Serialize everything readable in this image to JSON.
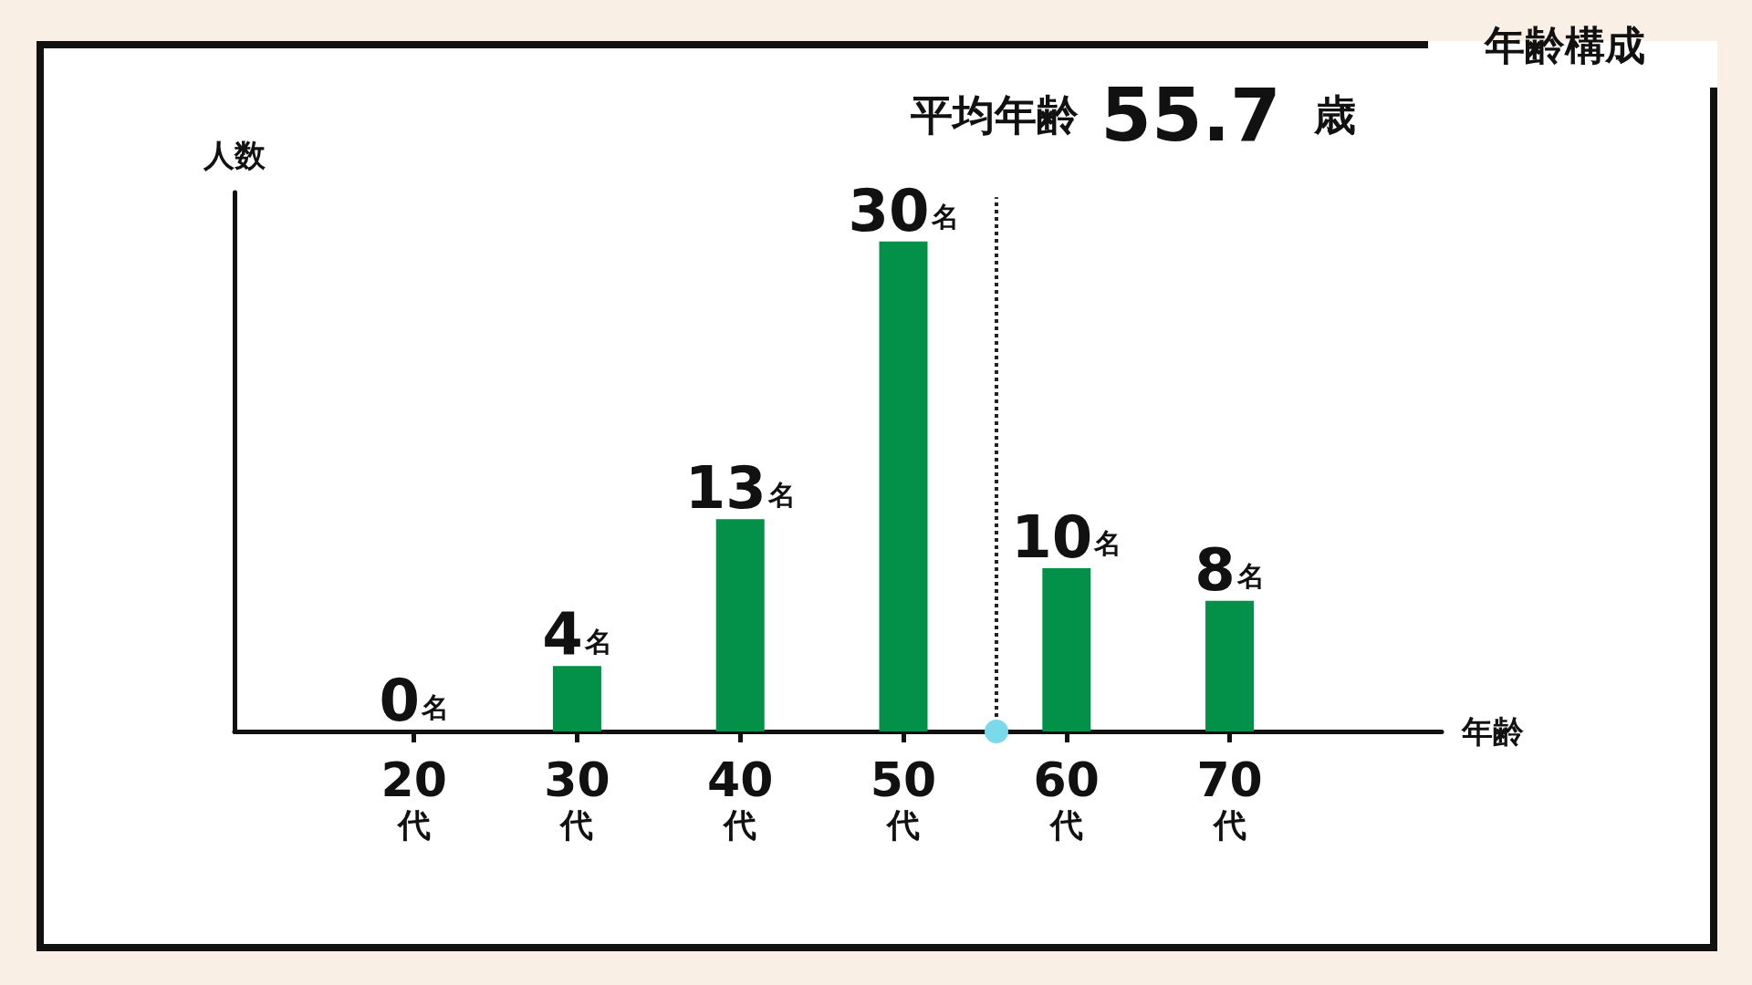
{
  "chart_data": {
    "type": "bar",
    "title": "年齢構成",
    "xlabel": "年齢",
    "ylabel": "人数",
    "x": [
      20,
      30,
      40,
      50,
      60,
      70
    ],
    "values": [
      0,
      4,
      13,
      30,
      10,
      8
    ],
    "value_labels": [
      "0名",
      "4名",
      "13名",
      "30名",
      "10名",
      "8名"
    ],
    "color": "#03914a",
    "xlim": [
      9,
      83
    ],
    "xticks": [
      {
        "value": 20,
        "label": "20\n代"
      },
      {
        "value": 30,
        "label": "30\n代"
      },
      {
        "value": 40,
        "label": "40\n代"
      },
      {
        "value": 50,
        "label": "50\n代"
      },
      {
        "value": 60,
        "label": "60\n代"
      },
      {
        "value": 70,
        "label": "70\n代"
      }
    ],
    "ylim": [
      0,
      33
    ],
    "tick_labels": "x",
    "grid": false,
    "ref_lines": [
      {
        "axis": "x",
        "value": 55.7,
        "label": "平均年齢 55.7 歳",
        "line_style": "dotted",
        "color": "#222222"
      }
    ]
  }
}
